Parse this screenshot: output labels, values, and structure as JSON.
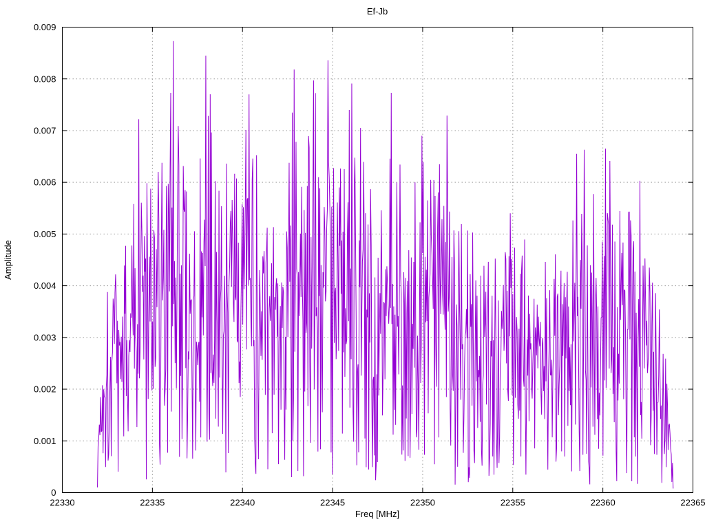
{
  "page": {
    "background_color": "#ffffff"
  },
  "chart_data": {
    "type": "line",
    "title": "Ef-Jb",
    "xlabel": "Freq [MHz]",
    "ylabel": "Amplitude",
    "xlim": [
      22330,
      22365
    ],
    "ylim": [
      0,
      0.009
    ],
    "xticks": {
      "values": [
        22330,
        22335,
        22340,
        22345,
        22350,
        22355,
        22360,
        22365
      ],
      "labels": [
        "22330",
        "22335",
        "22340",
        "22345",
        "22350",
        "22355",
        "22360",
        "22365"
      ]
    },
    "yticks": {
      "values": [
        0,
        0.001,
        0.002,
        0.003,
        0.004,
        0.005,
        0.006,
        0.007,
        0.008,
        0.009
      ],
      "labels": [
        "0",
        "0.001",
        "0.002",
        "0.003",
        "0.004",
        "0.005",
        "0.006",
        "0.007",
        "0.008",
        "0.009"
      ]
    },
    "grid": true,
    "grid_style": "dotted",
    "legend_position": "none",
    "line_color": "#9400d3",
    "grid_color": "#9a9a9a",
    "border_color": "#000000",
    "series_name": "Ef-Jb",
    "data_x_start": 22331.95,
    "data_x_end": 22363.9,
    "n_points": 920,
    "noise_floor": 0.00015,
    "seed": 1337,
    "envelope": [
      [
        22331.95,
        0.0012
      ],
      [
        22332.3,
        0.004
      ],
      [
        22333.0,
        0.0048
      ],
      [
        22334.0,
        0.0062
      ],
      [
        22335.0,
        0.0064
      ],
      [
        22336.0,
        0.0088
      ],
      [
        22336.6,
        0.007
      ],
      [
        22337.4,
        0.0062
      ],
      [
        22338.0,
        0.0085
      ],
      [
        22338.6,
        0.0066
      ],
      [
        22339.3,
        0.0067
      ],
      [
        22340.3,
        0.0077
      ],
      [
        22341.0,
        0.0067
      ],
      [
        22342.0,
        0.0066
      ],
      [
        22343.0,
        0.0082
      ],
      [
        22344.0,
        0.008
      ],
      [
        22344.8,
        0.0084
      ],
      [
        22345.6,
        0.0072
      ],
      [
        22346.1,
        0.0079
      ],
      [
        22347.0,
        0.007
      ],
      [
        22348.2,
        0.0078
      ],
      [
        22349.0,
        0.0063
      ],
      [
        22350.0,
        0.007
      ],
      [
        22351.3,
        0.0073
      ],
      [
        22352.2,
        0.0062
      ],
      [
        22353.2,
        0.005
      ],
      [
        22354.2,
        0.0054
      ],
      [
        22355.2,
        0.0054
      ],
      [
        22356.2,
        0.0047
      ],
      [
        22357.2,
        0.0046
      ],
      [
        22358.5,
        0.0066
      ],
      [
        22359.2,
        0.006
      ],
      [
        22360.2,
        0.0067
      ],
      [
        22361.0,
        0.0055
      ],
      [
        22362.0,
        0.006
      ],
      [
        22362.8,
        0.0045
      ],
      [
        22363.4,
        0.0034
      ],
      [
        22363.9,
        0.0005
      ]
    ],
    "notable_peaks": [
      [
        22336.15,
        0.00873
      ],
      [
        22337.95,
        0.00845
      ],
      [
        22334.25,
        0.00722
      ],
      [
        22340.35,
        0.0077
      ],
      [
        22342.85,
        0.00818
      ],
      [
        22343.95,
        0.00797
      ],
      [
        22344.75,
        0.00836
      ],
      [
        22346.05,
        0.00791
      ],
      [
        22346.55,
        0.00705
      ],
      [
        22348.25,
        0.00773
      ],
      [
        22349.95,
        0.0069
      ],
      [
        22351.35,
        0.00729
      ],
      [
        22354.85,
        0.0054
      ],
      [
        22358.55,
        0.00655
      ],
      [
        22358.95,
        0.00663
      ],
      [
        22360.15,
        0.00665
      ],
      [
        22362.05,
        0.00603
      ]
    ]
  }
}
